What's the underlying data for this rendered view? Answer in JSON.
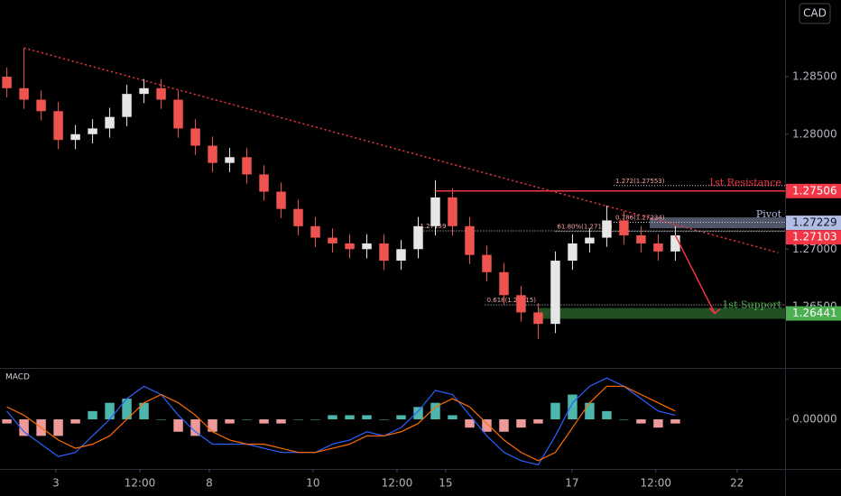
{
  "chart_data": {
    "type": "candlestick",
    "currency": "CAD",
    "x": [
      0,
      1,
      2,
      3,
      4,
      5,
      6,
      7,
      8,
      9,
      10,
      11,
      12,
      13,
      14,
      15,
      16,
      17,
      18,
      19,
      20,
      21,
      22,
      23,
      24,
      25,
      26,
      27,
      28,
      29,
      30,
      31,
      32,
      33,
      34,
      35,
      36,
      37,
      38,
      39
    ],
    "open": [
      1.285,
      1.284,
      1.283,
      1.282,
      1.2795,
      1.28,
      1.2805,
      1.2815,
      1.2835,
      1.284,
      1.283,
      1.2805,
      1.279,
      1.2775,
      1.278,
      1.2765,
      1.275,
      1.2735,
      1.272,
      1.271,
      1.2705,
      1.27,
      1.2705,
      1.269,
      1.27,
      1.272,
      1.2745,
      1.272,
      1.2695,
      1.268,
      1.266,
      1.2645,
      1.2635,
      1.269,
      1.2705,
      1.271,
      1.2725,
      1.2712,
      1.2705,
      1.2698
    ],
    "high": [
      1.2858,
      1.2875,
      1.2838,
      1.2828,
      1.2808,
      1.2813,
      1.2823,
      1.2843,
      1.2848,
      1.2848,
      1.2838,
      1.2813,
      1.2798,
      1.2788,
      1.2788,
      1.2773,
      1.2758,
      1.2743,
      1.2728,
      1.2718,
      1.2713,
      1.2713,
      1.2713,
      1.2708,
      1.2728,
      1.276,
      1.2753,
      1.2728,
      1.2703,
      1.2688,
      1.2668,
      1.2653,
      1.2698,
      1.2713,
      1.2718,
      1.2738,
      1.2733,
      1.272,
      1.2713,
      1.272
    ],
    "low": [
      1.2832,
      1.2822,
      1.2812,
      1.2787,
      1.2787,
      1.2792,
      1.2797,
      1.2807,
      1.2827,
      1.2822,
      1.2797,
      1.2782,
      1.2767,
      1.2767,
      1.2757,
      1.2742,
      1.2727,
      1.2712,
      1.2702,
      1.2697,
      1.2692,
      1.2692,
      1.2682,
      1.2682,
      1.2692,
      1.2712,
      1.2712,
      1.2687,
      1.2672,
      1.2652,
      1.2637,
      1.2622,
      1.2627,
      1.2682,
      1.2697,
      1.2702,
      1.2704,
      1.2697,
      1.269,
      1.269
    ],
    "close": [
      1.284,
      1.283,
      1.282,
      1.2795,
      1.28,
      1.2805,
      1.2815,
      1.2835,
      1.284,
      1.283,
      1.2805,
      1.279,
      1.2775,
      1.278,
      1.2765,
      1.275,
      1.2735,
      1.272,
      1.271,
      1.2705,
      1.27,
      1.2705,
      1.269,
      1.27,
      1.272,
      1.2745,
      1.272,
      1.2695,
      1.268,
      1.266,
      1.2645,
      1.2635,
      1.269,
      1.2705,
      1.271,
      1.2725,
      1.2712,
      1.2705,
      1.2698,
      1.2712
    ],
    "up_color": "#e6e6e6",
    "down_color": "#ef5350",
    "xlim": [
      -0.4,
      45.4
    ],
    "xticks": [
      {
        "value": 2.86,
        "label": "3"
      },
      {
        "value": 7.76,
        "label": "12:00"
      },
      {
        "value": 11.81,
        "label": "8"
      },
      {
        "value": 17.86,
        "label": "10"
      },
      {
        "value": 22.76,
        "label": "12:00"
      },
      {
        "value": 25.6,
        "label": "15"
      },
      {
        "value": 32.97,
        "label": "17"
      },
      {
        "value": 37.86,
        "label": "12:00"
      },
      {
        "value": 42.6,
        "label": "22"
      }
    ],
    "ylim": [
      1.25967,
      1.29167
    ],
    "yticks": [
      {
        "value": 1.285,
        "label": "1.28500"
      },
      {
        "value": 1.28,
        "label": "1.28000"
      },
      {
        "value": 1.27,
        "label": "1.27000"
      },
      {
        "value": 1.265,
        "label": "1.26500"
      }
    ],
    "trendline": {
      "x": [
        1,
        45
      ],
      "values": [
        1.2875,
        1.2697
      ],
      "color": "#f23645"
    },
    "levels": [
      {
        "label": "1st Resistance",
        "value": 1.27506,
        "value_label": "1.27506",
        "x": 25,
        "color": "#f23645",
        "text_color": "#ffffff"
      },
      {
        "label": "Pivot",
        "value": 1.27229,
        "value_label": "1.27229",
        "x": 37.5,
        "color": "#b2bde6",
        "text_color": "#131722"
      },
      {
        "label": "1st Support",
        "value": 1.26441,
        "value_label": "1.26441",
        "x": 31,
        "color": "#4caf50",
        "text_color": "#ffffff"
      }
    ],
    "fib_levels": [
      {
        "value": 1.27553,
        "label": "1.272(1.27553)",
        "x": 35.4
      },
      {
        "value": 1.27234,
        "label": "0.786(1.27234)",
        "x": 35.4
      },
      {
        "value": 1.27154,
        "label": "61.80%(1.27154)",
        "x": 32
      },
      {
        "value": 1.27159,
        "label": "1.27159",
        "x": 24
      },
      {
        "value": 1.26515,
        "label": "0.618(1.26515)",
        "x": 27.9
      }
    ],
    "current_price": {
      "value": 1.27103,
      "label": "1.27103",
      "color": "#f23645"
    },
    "macd": {
      "title": "MACD",
      "macd": [
        0.0002,
        -0.0003,
        -0.0006,
        -0.0009,
        -0.0008,
        -0.0004,
        0.0,
        0.0005,
        0.0008,
        0.0006,
        0.0001,
        -0.0003,
        -0.0006,
        -0.0006,
        -0.0006,
        -0.0007,
        -0.0008,
        -0.0008,
        -0.0008,
        -0.0006,
        -0.0005,
        -0.0003,
        -0.0004,
        -0.0002,
        0.0002,
        0.0007,
        0.0006,
        0.0001,
        -0.0004,
        -0.0008,
        -0.001,
        -0.0011,
        -0.0004,
        0.0004,
        0.0008,
        0.001,
        0.0008,
        0.0005,
        0.0002,
        0.0001
      ],
      "signal": [
        0.0003,
        0.0001,
        -0.0002,
        -0.0005,
        -0.0007,
        -0.0006,
        -0.0004,
        0.0,
        0.0004,
        0.0006,
        0.0004,
        0.0001,
        -0.0003,
        -0.0005,
        -0.0006,
        -0.0006,
        -0.0007,
        -0.0008,
        -0.0008,
        -0.0007,
        -0.0006,
        -0.0004,
        -0.0004,
        -0.0003,
        -0.0001,
        0.0003,
        0.0005,
        0.0003,
        -0.0001,
        -0.0005,
        -0.0008,
        -0.001,
        -0.0008,
        -0.0002,
        0.0004,
        0.0008,
        0.0008,
        0.0006,
        0.0004,
        0.0002
      ],
      "histogram": [
        -0.0001,
        -0.0004,
        -0.0004,
        -0.0004,
        -0.0001,
        0.0002,
        0.0004,
        0.0005,
        0.0004,
        0.0,
        -0.0003,
        -0.0004,
        -0.0003,
        -0.0001,
        0.0,
        -0.0001,
        -0.0001,
        0.0,
        0.0,
        0.0001,
        0.0001,
        0.0001,
        0.0,
        0.0001,
        0.0003,
        0.0004,
        0.0001,
        -0.0002,
        -0.0003,
        -0.0003,
        -0.0002,
        -0.0001,
        0.0004,
        0.0006,
        0.0004,
        0.0002,
        0.0,
        -0.0001,
        -0.0002,
        -0.0001
      ],
      "macd_color": "#2962ff",
      "signal_color": "#ff6d00",
      "hist_up_color": "#4db6ac",
      "hist_down_color": "#ef9a9a",
      "ylim": [
        -0.0012,
        0.0012
      ],
      "yticks": [
        {
          "value": 0,
          "label": "0.00000"
        }
      ]
    }
  }
}
